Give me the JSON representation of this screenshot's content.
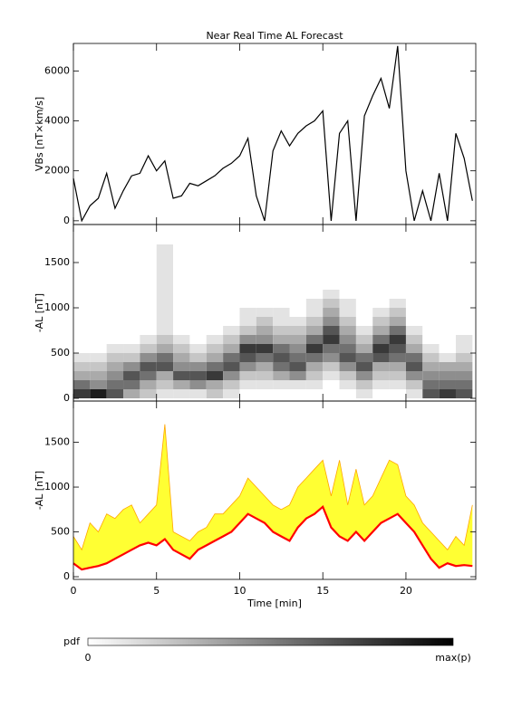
{
  "chart_data": [
    {
      "type": "line",
      "title": "Near Real Time AL Forecast",
      "ylabel": "VBs [nT×km/s]",
      "xlim": [
        0,
        24.2
      ],
      "ylim": [
        -150,
        7100
      ],
      "yticks": [
        0,
        2000,
        4000,
        6000
      ],
      "xticks": [
        0,
        5,
        10,
        15,
        20
      ],
      "x": [
        0,
        0.5,
        1,
        1.5,
        2,
        2.5,
        3,
        3.5,
        4,
        4.5,
        5,
        5.5,
        6,
        6.5,
        7,
        7.5,
        8,
        8.5,
        9,
        9.5,
        10,
        10.5,
        11,
        11.5,
        12,
        12.5,
        13,
        13.5,
        14,
        14.5,
        15,
        15.5,
        16,
        16.5,
        17,
        17.5,
        18,
        18.5,
        19,
        19.5,
        20,
        20.5,
        21,
        21.5,
        22,
        22.5,
        23,
        23.5,
        24
      ],
      "color": "#000000",
      "values": [
        1700,
        0,
        600,
        900,
        1900,
        500,
        1200,
        1800,
        1900,
        2600,
        2000,
        2400,
        900,
        1000,
        1500,
        1400,
        1600,
        1800,
        2100,
        2300,
        2600,
        3300,
        1000,
        0,
        2800,
        3600,
        3000,
        3500,
        3800,
        4000,
        4400,
        0,
        3500,
        4000,
        0,
        4200,
        5000,
        5700,
        4500,
        7000,
        2000,
        0,
        1200,
        0,
        1900,
        0,
        3500,
        2500,
        800
      ]
    },
    {
      "type": "heatmap",
      "ylabel": "-AL [nT]",
      "xlim": [
        0,
        24.2
      ],
      "ylim": [
        -30,
        1920
      ],
      "yticks": [
        0,
        500,
        1000,
        1500
      ],
      "xticks": [
        0,
        5,
        10,
        15,
        20
      ],
      "xbins": [
        0,
        1,
        2,
        3,
        4,
        5,
        6,
        7,
        8,
        9,
        10,
        11,
        12,
        13,
        14,
        15,
        16,
        17,
        18,
        19,
        20,
        21,
        22,
        23,
        24
      ],
      "ybins": [
        0,
        100,
        200,
        300,
        400,
        500,
        600,
        700,
        800,
        900,
        1000,
        1100,
        1200,
        1300,
        1400,
        1500,
        1600,
        1700,
        1800
      ],
      "zlim": [
        0,
        9
      ],
      "z": [
        [
          7,
          5,
          3,
          2,
          1,
          0,
          0,
          0,
          0,
          0,
          0,
          0,
          0,
          0,
          0,
          0,
          0,
          0
        ],
        [
          8,
          4,
          3,
          2,
          1,
          0,
          0,
          0,
          0,
          0,
          0,
          0,
          0,
          0,
          0,
          0,
          0,
          0
        ],
        [
          6,
          5,
          4,
          3,
          2,
          1,
          0,
          0,
          0,
          0,
          0,
          0,
          0,
          0,
          0,
          0,
          0,
          0
        ],
        [
          3,
          5,
          6,
          4,
          2,
          1,
          0,
          0,
          0,
          0,
          0,
          0,
          0,
          0,
          0,
          0,
          0,
          0
        ],
        [
          2,
          3,
          5,
          6,
          4,
          2,
          1,
          0,
          0,
          0,
          0,
          0,
          0,
          0,
          0,
          0,
          0,
          0
        ],
        [
          1,
          2,
          3,
          6,
          5,
          3,
          2,
          1,
          1,
          1,
          1,
          1,
          1,
          1,
          1,
          1,
          1,
          0
        ],
        [
          1,
          3,
          6,
          4,
          3,
          2,
          1,
          0,
          0,
          0,
          0,
          0,
          0,
          0,
          0,
          0,
          0,
          0
        ],
        [
          1,
          4,
          6,
          4,
          2,
          1,
          0,
          0,
          0,
          0,
          0,
          0,
          0,
          0,
          0,
          0,
          0,
          0
        ],
        [
          2,
          3,
          7,
          5,
          3,
          2,
          1,
          0,
          0,
          0,
          0,
          0,
          0,
          0,
          0,
          0,
          0,
          0
        ],
        [
          1,
          2,
          4,
          6,
          5,
          3,
          2,
          1,
          0,
          0,
          0,
          0,
          0,
          0,
          0,
          0,
          0,
          0
        ],
        [
          0,
          1,
          2,
          4,
          6,
          7,
          4,
          2,
          1,
          1,
          0,
          0,
          0,
          0,
          0,
          0,
          0,
          0
        ],
        [
          0,
          1,
          2,
          3,
          5,
          7,
          4,
          3,
          2,
          1,
          0,
          0,
          0,
          0,
          0,
          0,
          0,
          0
        ],
        [
          0,
          1,
          3,
          5,
          6,
          5,
          3,
          2,
          1,
          1,
          0,
          0,
          0,
          0,
          0,
          0,
          0,
          0
        ],
        [
          0,
          1,
          4,
          6,
          5,
          4,
          3,
          2,
          1,
          0,
          0,
          0,
          0,
          0,
          0,
          0,
          0,
          0
        ],
        [
          0,
          1,
          2,
          3,
          5,
          7,
          5,
          3,
          2,
          1,
          1,
          0,
          0,
          0,
          0,
          0,
          0,
          0
        ],
        [
          0,
          0,
          1,
          2,
          4,
          5,
          7,
          6,
          4,
          3,
          2,
          1,
          0,
          0,
          0,
          0,
          0,
          0
        ],
        [
          0,
          1,
          2,
          4,
          6,
          5,
          4,
          3,
          2,
          1,
          1,
          0,
          0,
          0,
          0,
          0,
          0,
          0
        ],
        [
          1,
          2,
          4,
          6,
          5,
          3,
          2,
          1,
          0,
          0,
          0,
          0,
          0,
          0,
          0,
          0,
          0,
          0
        ],
        [
          0,
          1,
          2,
          3,
          6,
          7,
          5,
          3,
          2,
          1,
          0,
          0,
          0,
          0,
          0,
          0,
          0,
          0
        ],
        [
          0,
          1,
          2,
          3,
          5,
          6,
          7,
          5,
          3,
          2,
          1,
          0,
          0,
          0,
          0,
          0,
          0,
          0
        ],
        [
          1,
          2,
          4,
          6,
          5,
          3,
          2,
          1,
          0,
          0,
          0,
          0,
          0,
          0,
          0,
          0,
          0,
          0
        ],
        [
          6,
          5,
          4,
          3,
          2,
          1,
          0,
          0,
          0,
          0,
          0,
          0,
          0,
          0,
          0,
          0,
          0,
          0
        ],
        [
          7,
          5,
          4,
          3,
          1,
          0,
          0,
          0,
          0,
          0,
          0,
          0,
          0,
          0,
          0,
          0,
          0,
          0
        ],
        [
          6,
          5,
          4,
          3,
          2,
          1,
          1,
          0,
          0,
          0,
          0,
          0,
          0,
          0,
          0,
          0,
          0,
          0
        ]
      ],
      "colorbar": {
        "label": "pdf",
        "min_label": "0",
        "max_label": "max(p)"
      }
    },
    {
      "type": "band",
      "ylabel": "-AL [nT]",
      "xlabel": "Time [min]",
      "xlim": [
        0,
        24.2
      ],
      "ylim": [
        -30,
        1960
      ],
      "yticks": [
        0,
        500,
        1000,
        1500
      ],
      "xticks": [
        0,
        5,
        10,
        15,
        20
      ],
      "x": [
        0,
        0.5,
        1,
        1.5,
        2,
        2.5,
        3,
        3.5,
        4,
        4.5,
        5,
        5.5,
        6,
        6.5,
        7,
        7.5,
        8,
        8.5,
        9,
        9.5,
        10,
        10.5,
        11,
        11.5,
        12,
        12.5,
        13,
        13.5,
        14,
        14.5,
        15,
        15.5,
        16,
        16.5,
        17,
        17.5,
        18,
        18.5,
        19,
        19.5,
        20,
        20.5,
        21,
        21.5,
        22,
        22.5,
        23,
        23.5,
        24
      ],
      "series": [
        {
          "color": "#ff0000",
          "values": [
            150,
            80,
            100,
            120,
            150,
            200,
            250,
            300,
            350,
            380,
            350,
            420,
            300,
            250,
            200,
            300,
            350,
            400,
            450,
            500,
            600,
            700,
            650,
            600,
            500,
            450,
            400,
            550,
            650,
            700,
            780,
            550,
            450,
            400,
            500,
            400,
            500,
            600,
            650,
            700,
            600,
            500,
            350,
            200,
            100,
            150,
            120,
            130,
            120
          ]
        },
        {
          "color": "#ffa500",
          "fill": "#ffff33",
          "values": [
            450,
            300,
            600,
            500,
            700,
            650,
            750,
            800,
            600,
            700,
            800,
            1700,
            500,
            450,
            400,
            500,
            550,
            700,
            700,
            800,
            900,
            1100,
            1000,
            900,
            800,
            750,
            800,
            1000,
            1100,
            1200,
            1300,
            900,
            1300,
            800,
            1200,
            800,
            900,
            1100,
            1300,
            1250,
            900,
            800,
            600,
            500,
            400,
            300,
            450,
            350,
            800
          ]
        }
      ]
    }
  ]
}
